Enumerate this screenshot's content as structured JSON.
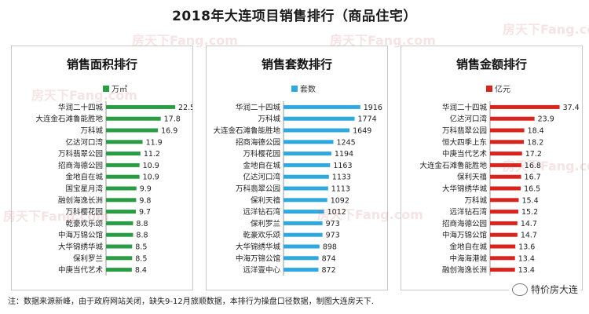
{
  "title": "2018年大连项目销售排行（商品住宅）",
  "watermark": "房天下Fang.com",
  "footnote": "注：数据来源新峰，由于政府网站关闭，缺失9-12月旅顺数据，本排行为操盘口径数据，制图大连房天下.",
  "account": "特价房大连",
  "chart_data": [
    {
      "type": "bar",
      "orientation": "horizontal",
      "title": "销售面积排行",
      "series_name": "万㎡",
      "color": "#2a9d44",
      "categories": [
        "华润二十四城",
        "大连金石滩鲁能胜地",
        "万科城",
        "亿达河口湾",
        "万科翡翠公园",
        "招商海德公园",
        "金地自在城",
        "国宝星月湾",
        "融创海逸长洲",
        "万科樱花园",
        "乾豪欢乐颂",
        "中海万锦公馆",
        "大华锦绣华城",
        "保利罗兰",
        "中庚当代艺术"
      ],
      "values": [
        22.5,
        17.8,
        16.9,
        11.9,
        11.2,
        10.9,
        10.9,
        9.9,
        9.8,
        9.7,
        8.8,
        8.8,
        8.5,
        8.5,
        8.4
      ],
      "labels": [
        "22.5",
        "17.8",
        "16.9",
        "11.9",
        "11.2",
        "10.9",
        "10.9",
        "9.9",
        "9.8",
        "9.7",
        "8.8",
        "8.8",
        "8.5",
        "8.5",
        "8.4"
      ],
      "max": 23
    },
    {
      "type": "bar",
      "orientation": "horizontal",
      "title": "销售套数排行",
      "series_name": "套数",
      "color": "#2fa8de",
      "categories": [
        "华润二十四城",
        "万科城",
        "大连金石滩鲁能胜地",
        "招商海德公园",
        "万科樱花园",
        "金地自在城",
        "亿达河口湾",
        "万科翡翠公园",
        "保利天禧",
        "远洋钻石湾",
        "保利罗兰",
        "乾豪欢乐颂",
        "大华锦绣华城",
        "中海万锦公馆",
        "远洋壹中心"
      ],
      "values": [
        1916,
        1774,
        1649,
        1245,
        1194,
        1163,
        1133,
        1113,
        1092,
        1012,
        973,
        973,
        898,
        874,
        872
      ],
      "labels": [
        "1916",
        "1774",
        "1649",
        "1245",
        "1194",
        "1163",
        "1133",
        "1113",
        "1092",
        "1012",
        "973",
        "973",
        "898",
        "874",
        "872"
      ],
      "max": 1960
    },
    {
      "type": "bar",
      "orientation": "horizontal",
      "title": "销售金额排行",
      "series_name": "亿元",
      "color": "#d9231d",
      "categories": [
        "华润二十四城",
        "亿达河口湾",
        "万科翡翠公园",
        "恒大四季上东",
        "中庚当代艺术",
        "大连金石滩鲁能胜地",
        "保利天禧",
        "大华锦绣华城",
        "万科城",
        "远洋钻石湾",
        "招商海德公园",
        "中海万锦公馆",
        "金地自在城",
        "中海海港城",
        "融创海逸长洲"
      ],
      "values": [
        37.4,
        23.9,
        18.4,
        18.2,
        17.2,
        16.8,
        16.7,
        16.5,
        15.4,
        15.2,
        14.7,
        14.7,
        13.6,
        13.4,
        13.4
      ],
      "labels": [
        "37.4",
        "23.9",
        "18.4",
        "18.2",
        "17.2",
        "16.8",
        "16.7",
        "16.5",
        "15.4",
        "15.2",
        "14.7",
        "14.7",
        "13.6",
        "13.4",
        "13.4"
      ],
      "max": 38
    }
  ]
}
